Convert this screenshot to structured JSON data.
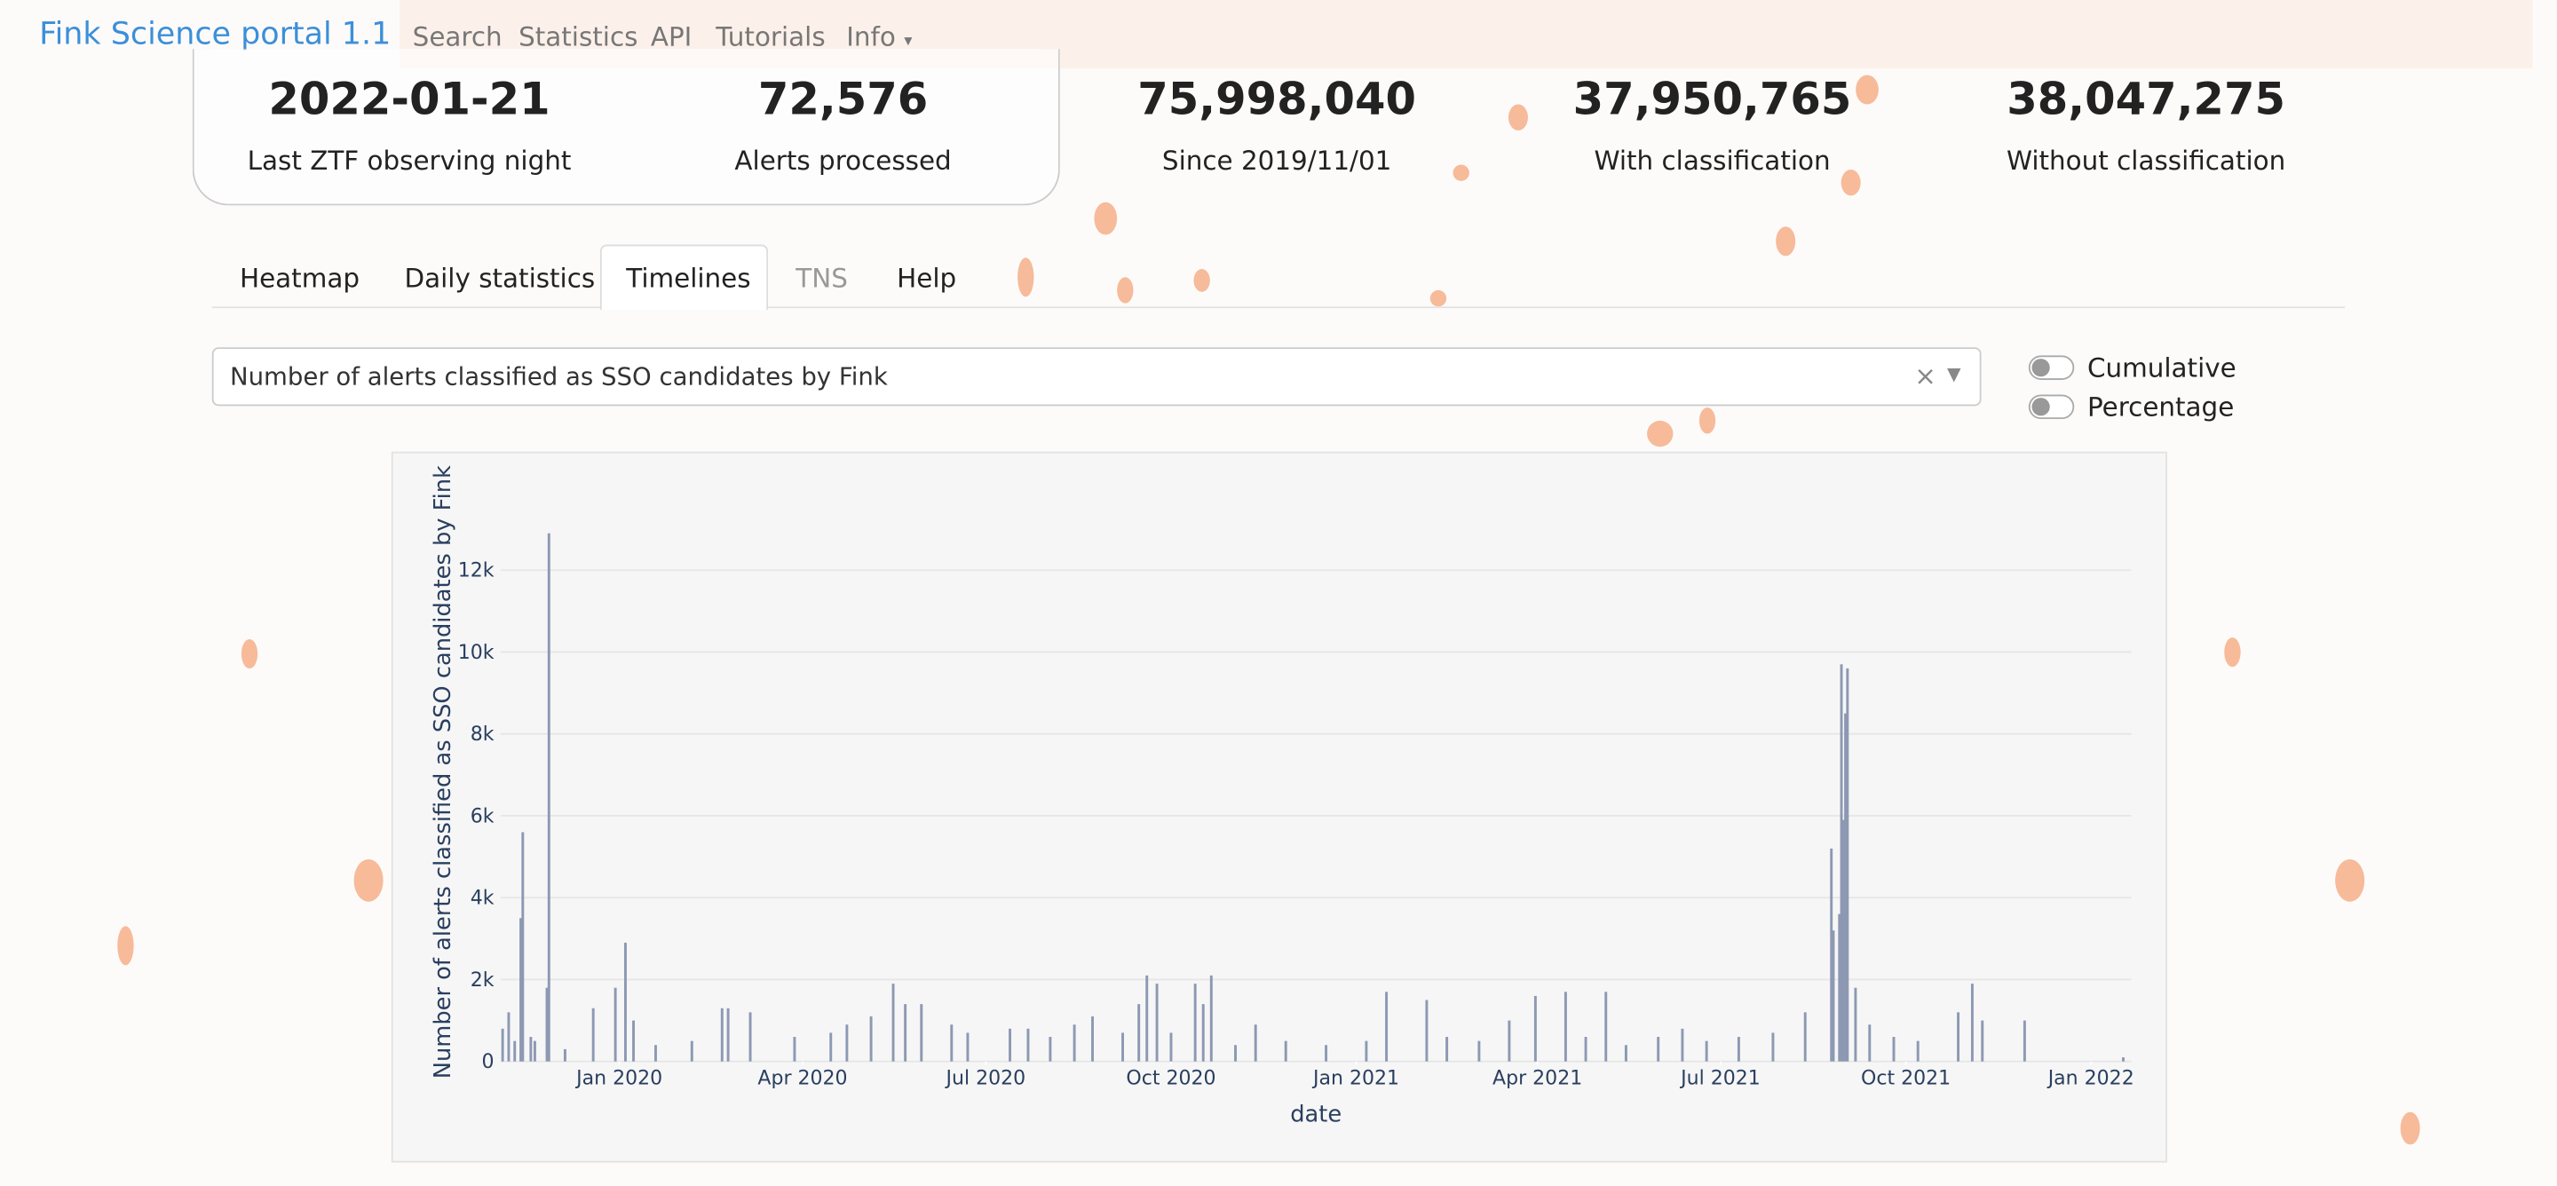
{
  "navbar": {
    "brand": "Fink Science portal 1.1",
    "links": [
      "Search",
      "Statistics",
      "API",
      "Tutorials",
      "Info"
    ]
  },
  "stats": [
    {
      "value": "2022-01-21",
      "label": "Last ZTF observing night"
    },
    {
      "value": "72,576",
      "label": "Alerts processed"
    },
    {
      "value": "75,998,040",
      "label": "Since 2019/11/01"
    },
    {
      "value": "37,950,765",
      "label": "With classification"
    },
    {
      "value": "38,047,275",
      "label": "Without classification"
    }
  ],
  "tabs": [
    "Heatmap",
    "Daily statistics",
    "Timelines",
    "TNS",
    "Help"
  ],
  "dropdown": {
    "selected": "Number of alerts classified as SSO candidates by Fink",
    "clear": "×"
  },
  "toggles": [
    "Cumulative",
    "Percentage"
  ],
  "chart_data": {
    "type": "bar",
    "x_label": "date",
    "y_label": "Number of alerts classified as SSO candidates by Fink",
    "color": "#8d99b3",
    "grid": true,
    "xlim": [
      "2019-11-03",
      "2022-01-21"
    ],
    "xticks": [
      {
        "value": "2020-01-01",
        "label": "Jan 2020"
      },
      {
        "value": "2020-04-01",
        "label": "Apr 2020"
      },
      {
        "value": "2020-07-01",
        "label": "Jul 2020"
      },
      {
        "value": "2020-10-01",
        "label": "Oct 2020"
      },
      {
        "value": "2021-01-01",
        "label": "Jan 2021"
      },
      {
        "value": "2021-04-01",
        "label": "Apr 2021"
      },
      {
        "value": "2021-07-01",
        "label": "Jul 2021"
      },
      {
        "value": "2021-10-01",
        "label": "Oct 2021"
      },
      {
        "value": "2022-01-01",
        "label": "Jan 2022"
      }
    ],
    "ylim": [
      0,
      13500
    ],
    "yticks": [
      0,
      {
        "value": 2000,
        "label": "2k"
      },
      {
        "value": 4000,
        "label": "4k"
      },
      {
        "value": 6000,
        "label": "6k"
      },
      {
        "value": 8000,
        "label": "8k"
      },
      {
        "value": 10000,
        "label": "10k"
      },
      {
        "value": 12000,
        "label": "12k"
      }
    ],
    "x": [
      "2019-11-04",
      "2019-11-07",
      "2019-11-10",
      "2019-11-13",
      "2019-11-14",
      "2019-11-18",
      "2019-11-20",
      "2019-11-26",
      "2019-11-27",
      "2019-12-05",
      "2019-12-19",
      "2019-12-30",
      "2020-01-04",
      "2020-01-08",
      "2020-01-19",
      "2020-02-06",
      "2020-02-21",
      "2020-02-24",
      "2020-03-06",
      "2020-03-28",
      "2020-04-15",
      "2020-04-23",
      "2020-05-05",
      "2020-05-16",
      "2020-05-22",
      "2020-05-30",
      "2020-06-14",
      "2020-06-22",
      "2020-07-13",
      "2020-07-22",
      "2020-08-02",
      "2020-08-14",
      "2020-08-23",
      "2020-09-07",
      "2020-09-15",
      "2020-09-19",
      "2020-09-24",
      "2020-10-01",
      "2020-10-13",
      "2020-10-17",
      "2020-10-21",
      "2020-11-02",
      "2020-11-12",
      "2020-11-27",
      "2020-12-17",
      "2021-01-06",
      "2021-01-16",
      "2021-02-05",
      "2021-02-15",
      "2021-03-03",
      "2021-03-18",
      "2021-03-31",
      "2021-04-15",
      "2021-04-25",
      "2021-05-05",
      "2021-05-15",
      "2021-05-31",
      "2021-06-12",
      "2021-06-24",
      "2021-07-10",
      "2021-07-27",
      "2021-08-12",
      "2021-08-25",
      "2021-08-26",
      "2021-08-29",
      "2021-08-30",
      "2021-08-31",
      "2021-09-01",
      "2021-09-02",
      "2021-09-06",
      "2021-09-13",
      "2021-09-25",
      "2021-10-07",
      "2021-10-27",
      "2021-11-03",
      "2021-11-08",
      "2021-11-29",
      "2022-01-17"
    ],
    "values": [
      800,
      1200,
      500,
      3500,
      5600,
      600,
      500,
      1800,
      12900,
      300,
      1300,
      1800,
      2900,
      1000,
      400,
      500,
      1300,
      1300,
      1200,
      600,
      700,
      900,
      1100,
      1900,
      1400,
      1400,
      900,
      700,
      800,
      800,
      600,
      900,
      1100,
      700,
      1400,
      2100,
      1900,
      700,
      1900,
      1400,
      2100,
      400,
      900,
      500,
      400,
      500,
      1700,
      1500,
      600,
      500,
      1000,
      1600,
      1700,
      600,
      1700,
      400,
      600,
      800,
      500,
      600,
      700,
      1200,
      5200,
      3200,
      3600,
      9700,
      5900,
      8500,
      9600,
      1800,
      900,
      600,
      500,
      1200,
      1900,
      1000,
      1000,
      100
    ]
  }
}
